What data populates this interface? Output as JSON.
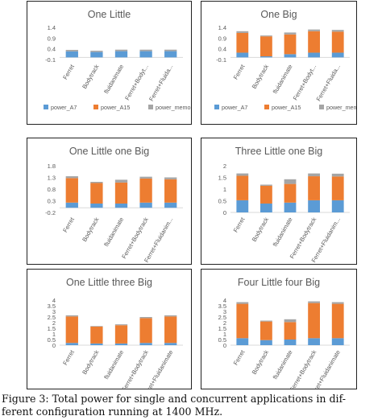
{
  "colors": {
    "power_A7": "#5b9bd5",
    "power_A15": "#ed7d31",
    "power_memory": "#a5a5a5",
    "axis": "#d9d9d9",
    "text": "#595959"
  },
  "legend_labels": [
    "power_A7",
    "power_A15",
    "power_memory"
  ],
  "chart_data": [
    {
      "type": "bar",
      "stacked": true,
      "title": "One Little",
      "categories": [
        "Ferret",
        "Bodytrack",
        "fluidanimate",
        "Ferret+Bodyt...",
        "Ferret+Fluida..."
      ],
      "yticks": [
        "-0.1",
        "0.4",
        "0.9",
        "1.4"
      ],
      "ylim": [
        -0.1,
        1.4
      ],
      "legend": "bottom",
      "series": [
        {
          "name": "power_A7",
          "values": [
            0.28,
            0.25,
            0.29,
            0.29,
            0.29
          ]
        },
        {
          "name": "power_A15",
          "values": [
            0.0,
            0.0,
            0.0,
            0.0,
            0.0
          ]
        },
        {
          "name": "power_memory",
          "values": [
            0.07,
            0.06,
            0.07,
            0.07,
            0.07
          ]
        }
      ]
    },
    {
      "type": "bar",
      "stacked": true,
      "title": "One Big",
      "categories": [
        "Ferret",
        "Bodytrack",
        "fluidanimate",
        "Ferret+Bodyt...",
        "Ferret+Fluida..."
      ],
      "yticks": [
        "-0.1",
        "0.4",
        "0.9",
        "1.4"
      ],
      "ylim": [
        -0.1,
        1.4
      ],
      "legend": "bottom",
      "series": [
        {
          "name": "power_A7",
          "values": [
            0.22,
            0.05,
            0.15,
            0.22,
            0.22
          ]
        },
        {
          "name": "power_A15",
          "values": [
            0.92,
            0.93,
            0.92,
            1.0,
            0.98
          ]
        },
        {
          "name": "power_memory",
          "values": [
            0.08,
            0.04,
            0.09,
            0.08,
            0.08
          ]
        }
      ]
    },
    {
      "type": "bar",
      "stacked": true,
      "title": "One Little one Big",
      "categories": [
        "Ferret",
        "Bodytrack",
        "fluidanimate",
        "Ferret+Bodytrack",
        "Ferret+Fluidanim..."
      ],
      "yticks": [
        "-0.2",
        "0.3",
        "0.8",
        "1.3",
        "1.8"
      ],
      "ylim": [
        -0.2,
        1.8
      ],
      "legend": "none",
      "series": [
        {
          "name": "power_A7",
          "values": [
            0.22,
            0.18,
            0.18,
            0.22,
            0.22
          ]
        },
        {
          "name": "power_A15",
          "values": [
            1.05,
            0.88,
            0.9,
            1.03,
            1.0
          ]
        },
        {
          "name": "power_memory",
          "values": [
            0.08,
            0.05,
            0.12,
            0.08,
            0.08
          ]
        }
      ]
    },
    {
      "type": "bar",
      "stacked": true,
      "title": "Three Little one Big",
      "categories": [
        "Ferret",
        "Bodytrack",
        "fluidanimate",
        "Ferret+Bodytrack",
        "Ferret+Fluidanim..."
      ],
      "yticks": [
        "0",
        "0.5",
        "1",
        "1.5",
        "2"
      ],
      "ylim": [
        0,
        2
      ],
      "legend": "none",
      "series": [
        {
          "name": "power_A7",
          "values": [
            0.52,
            0.38,
            0.42,
            0.52,
            0.52
          ]
        },
        {
          "name": "power_A15",
          "values": [
            1.05,
            0.76,
            0.8,
            1.03,
            1.02
          ]
        },
        {
          "name": "power_memory",
          "values": [
            0.1,
            0.05,
            0.2,
            0.12,
            0.12
          ]
        }
      ]
    },
    {
      "type": "bar",
      "stacked": true,
      "title": "One Little three Big",
      "categories": [
        "Ferret",
        "Bodytrack",
        "fluidanimate",
        "Ferret+Bodytrack",
        "Ferret+Fluidanimate"
      ],
      "yticks": [
        "0",
        "0.5",
        "1",
        "1.5",
        "2",
        "2.5",
        "3",
        "3.5",
        "4"
      ],
      "ylim": [
        0,
        4
      ],
      "legend": "none",
      "series": [
        {
          "name": "power_A7",
          "values": [
            0.2,
            0.15,
            0.15,
            0.2,
            0.2
          ]
        },
        {
          "name": "power_A15",
          "values": [
            2.35,
            1.5,
            1.62,
            2.2,
            2.35
          ]
        },
        {
          "name": "power_memory",
          "values": [
            0.1,
            0.05,
            0.08,
            0.1,
            0.1
          ]
        }
      ]
    },
    {
      "type": "bar",
      "stacked": true,
      "title": "Four Little four Big",
      "categories": [
        "Ferret",
        "Bodytrack",
        "fluidanimate",
        "Ferret+Bodytrack",
        "Ferret+Fluidanimate"
      ],
      "yticks": [
        "0",
        "0.5",
        "1",
        "1.5",
        "2",
        "2.5",
        "3",
        "3.5",
        "4"
      ],
      "ylim": [
        0,
        4
      ],
      "legend": "none",
      "series": [
        {
          "name": "power_A7",
          "values": [
            0.62,
            0.45,
            0.5,
            0.62,
            0.62
          ]
        },
        {
          "name": "power_A15",
          "values": [
            3.05,
            1.65,
            1.55,
            3.12,
            3.05
          ]
        },
        {
          "name": "power_memory",
          "values": [
            0.15,
            0.08,
            0.25,
            0.15,
            0.15
          ]
        }
      ]
    }
  ],
  "caption": {
    "line1": "Figure 3:  Total power for single and concurrent applications in dif-",
    "line2": "ferent configuration running at 1400 MHz."
  }
}
